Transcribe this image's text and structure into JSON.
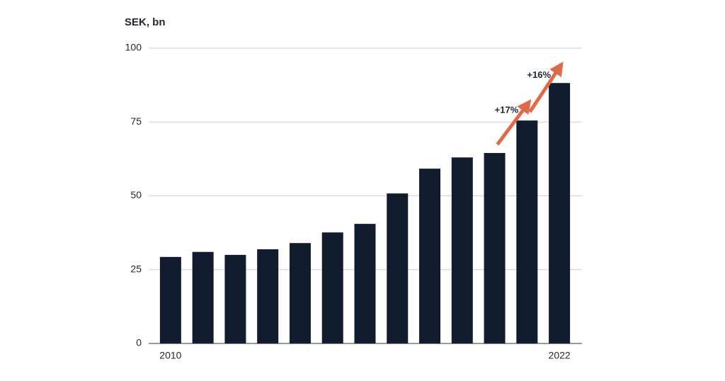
{
  "chart_data": {
    "type": "bar",
    "title": "SEK, bn",
    "categories": [
      "2010",
      null,
      null,
      null,
      null,
      null,
      null,
      null,
      null,
      null,
      null,
      null,
      "2022"
    ],
    "values": [
      29.3,
      31,
      30,
      31.9,
      34,
      37.6,
      40.5,
      50.8,
      59.2,
      63,
      64.5,
      75.5,
      88.2
    ],
    "color": "#111d2e",
    "ylim": [
      0,
      100
    ],
    "yticks": [
      0,
      25,
      50,
      75,
      100
    ],
    "grid": true,
    "annotations": [
      "+17%",
      "+16%"
    ],
    "annotation_color": "#e0694a"
  }
}
